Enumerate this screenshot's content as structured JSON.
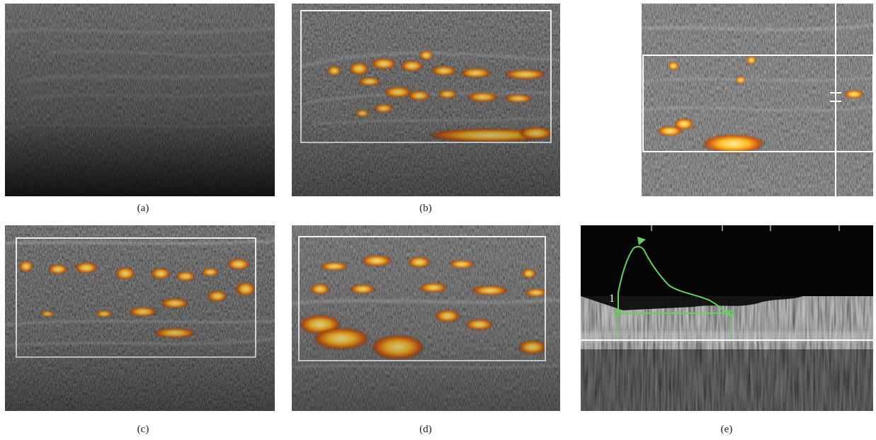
{
  "figure": {
    "panels": [
      {
        "id": "a",
        "caption": "(a)",
        "content": "grayscale-ultrasound-tendon"
      },
      {
        "id": "b",
        "caption": "(b)",
        "content": "power-doppler-ultrasound"
      },
      {
        "id": "c",
        "caption": "(c)",
        "content": "power-doppler-ultrasound"
      },
      {
        "id": "d",
        "caption": "(d)",
        "content": "power-doppler-ultrasound"
      },
      {
        "id": "e",
        "caption": "(e)",
        "content": "pulsed-wave-doppler-spectrum"
      }
    ],
    "extra_panel": {
      "content": "power-doppler-ultrasound-with-sample-volume"
    },
    "spectrum_marker_label": "1",
    "colors": {
      "doppler_hot": "#ffcf3a",
      "doppler_mid": "#e06a10",
      "doppler_dark": "#7a2a08",
      "roi_box": "#ffffff",
      "trace": "#5fd35a"
    }
  }
}
